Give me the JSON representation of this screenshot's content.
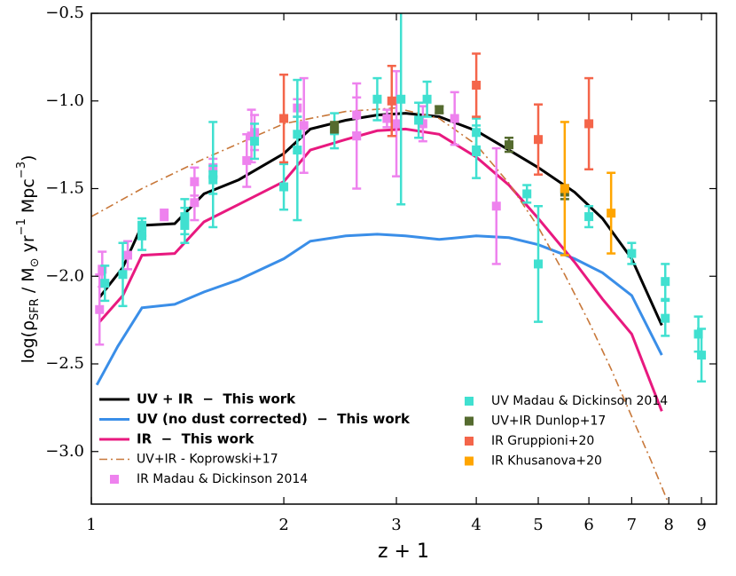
{
  "chart_data": {
    "type": "line",
    "x_label": "z + 1",
    "y_label_parts": [
      "log(ρ",
      "SFR",
      " / M",
      "⊙",
      " yr",
      "−1",
      " Mpc",
      "−3",
      ")"
    ],
    "x_log": true,
    "xlim": [
      1,
      9.5
    ],
    "xticks": [
      1,
      2,
      3,
      4,
      5,
      6,
      7,
      8,
      9
    ],
    "ylim": [
      -3.3,
      -0.5
    ],
    "yticks": [
      {
        "value": -3.0,
        "label": "−3.0"
      },
      {
        "value": -2.5,
        "label": "−2.5"
      },
      {
        "value": -2.0,
        "label": "−2.0"
      },
      {
        "value": -1.5,
        "label": "−1.5"
      },
      {
        "value": -1.0,
        "label": "−1.0"
      },
      {
        "value": -0.5,
        "label": "−0.5"
      }
    ],
    "series": [
      {
        "name": "UV + IR  −  This work",
        "kind": "line",
        "style": "solid",
        "bold": true,
        "color": "#000000",
        "x": [
          1.03,
          1.12,
          1.2,
          1.35,
          1.5,
          1.7,
          2.0,
          2.2,
          2.5,
          2.8,
          3.1,
          3.5,
          4.0,
          4.5,
          5.0,
          5.7,
          6.3,
          7.0,
          7.8
        ],
        "values": [
          -2.12,
          -1.95,
          -1.71,
          -1.7,
          -1.53,
          -1.45,
          -1.3,
          -1.16,
          -1.11,
          -1.08,
          -1.07,
          -1.09,
          -1.17,
          -1.28,
          -1.38,
          -1.52,
          -1.67,
          -1.9,
          -2.28
        ]
      },
      {
        "name": "UV (no dust corrected)  −  This work",
        "kind": "line",
        "style": "solid",
        "bold": true,
        "color": "#3a8ee8",
        "x": [
          1.02,
          1.1,
          1.2,
          1.35,
          1.5,
          1.7,
          2.0,
          2.2,
          2.5,
          2.8,
          3.1,
          3.5,
          4.0,
          4.5,
          5.0,
          5.7,
          6.3,
          7.0,
          7.8
        ],
        "values": [
          -2.62,
          -2.4,
          -2.18,
          -2.16,
          -2.09,
          -2.02,
          -1.9,
          -1.8,
          -1.77,
          -1.76,
          -1.77,
          -1.79,
          -1.77,
          -1.78,
          -1.82,
          -1.9,
          -1.98,
          -2.11,
          -2.45
        ]
      },
      {
        "name": "IR  −  This work",
        "kind": "line",
        "style": "solid",
        "bold": true,
        "color": "#e8197f",
        "x": [
          1.03,
          1.12,
          1.2,
          1.35,
          1.5,
          1.7,
          2.0,
          2.2,
          2.5,
          2.8,
          3.1,
          3.5,
          4.0,
          4.5,
          5.0,
          5.7,
          6.3,
          7.0,
          7.8
        ],
        "values": [
          -2.26,
          -2.11,
          -1.88,
          -1.87,
          -1.69,
          -1.59,
          -1.46,
          -1.28,
          -1.22,
          -1.17,
          -1.16,
          -1.19,
          -1.32,
          -1.48,
          -1.67,
          -1.92,
          -2.13,
          -2.33,
          -2.77
        ]
      },
      {
        "name": "UV+IR - Koprowski+17",
        "kind": "line",
        "style": "dashdot",
        "bold": false,
        "color": "#c8783a",
        "x": [
          1.0,
          1.2,
          1.5,
          2.0,
          2.5,
          3.0,
          3.5,
          4.0,
          4.5,
          5.0,
          5.5,
          6.0,
          6.5,
          7.0,
          7.5,
          8.0
        ],
        "values": [
          -1.66,
          -1.5,
          -1.33,
          -1.13,
          -1.06,
          -1.04,
          -1.1,
          -1.25,
          -1.47,
          -1.72,
          -1.99,
          -2.26,
          -2.53,
          -2.8,
          -3.05,
          -3.3
        ]
      },
      {
        "name": "IR Madau & Dickinson 2014",
        "kind": "points",
        "bold": false,
        "color": "#ee82ee",
        "x": [
          1.03,
          1.04,
          1.14,
          1.3,
          1.45,
          1.45,
          1.55,
          1.75,
          1.78,
          1.8,
          2.1,
          2.15,
          2.6,
          2.6,
          2.9,
          3.0,
          3.3,
          3.7,
          4.3
        ],
        "values": [
          -2.19,
          -1.96,
          -1.88,
          -1.65,
          -1.58,
          -1.46,
          -1.38,
          -1.34,
          -1.2,
          -1.18,
          -1.04,
          -1.14,
          -1.08,
          -1.2,
          -1.1,
          -1.13,
          -1.13,
          -1.1,
          -1.6
        ],
        "errors": [
          0.2,
          0.1,
          0.08,
          0.03,
          0.1,
          0.08,
          0.05,
          0.15,
          0.15,
          0.1,
          0.05,
          0.27,
          0.1,
          0.3,
          0.05,
          0.3,
          0.1,
          0.15,
          0.33
        ]
      },
      {
        "name": "UV Madau & Dickinson 2014",
        "kind": "points",
        "bold": false,
        "color": "#40e0d0",
        "x": [
          1.05,
          1.12,
          1.2,
          1.2,
          1.4,
          1.4,
          1.55,
          1.55,
          1.8,
          2.0,
          2.1,
          2.1,
          2.4,
          2.8,
          3.05,
          3.25,
          3.35,
          4.0,
          4.0,
          4.8,
          5.0,
          6.0,
          7.0,
          7.9,
          7.9,
          8.9,
          9.0
        ],
        "values": [
          -2.04,
          -1.99,
          -1.77,
          -1.72,
          -1.66,
          -1.71,
          -1.45,
          -1.42,
          -1.23,
          -1.49,
          -1.19,
          -1.28,
          -1.17,
          -0.99,
          -0.99,
          -1.11,
          -0.99,
          -1.29,
          -1.18,
          -1.53,
          -1.93,
          -1.66,
          -1.87,
          -2.03,
          -2.24,
          -2.33,
          -2.45
        ],
        "errors": [
          0.1,
          0.18,
          0.08,
          0.05,
          0.1,
          0.1,
          0.08,
          0.3,
          0.1,
          0.13,
          0.1,
          0.4,
          0.1,
          0.12,
          0.6,
          0.1,
          0.1,
          0.15,
          0.08,
          0.05,
          0.33,
          0.06,
          0.06,
          0.1,
          0.1,
          0.1,
          0.15
        ]
      },
      {
        "name": "UV+IR Dunlop+17",
        "kind": "points",
        "bold": false,
        "color": "#556b2f",
        "x": [
          2.4,
          3.5,
          4.5,
          5.5
        ],
        "values": [
          -1.15,
          -1.05,
          -1.25,
          -1.52
        ],
        "errors": [
          0.03,
          0.02,
          0.04,
          0.04
        ]
      },
      {
        "name": "IR Gruppioni+20",
        "kind": "points",
        "bold": false,
        "color": "#f4654a",
        "x": [
          2.0,
          2.95,
          4.0,
          5.0,
          6.0
        ],
        "values": [
          -1.1,
          -1.0,
          -0.91,
          -1.22,
          -1.13
        ],
        "errors": [
          0.25,
          0.2,
          0.18,
          0.2,
          0.26
        ]
      },
      {
        "name": "IR Khusanova+20",
        "kind": "points",
        "bold": false,
        "color": "#ffa500",
        "x": [
          5.5,
          6.5
        ],
        "values": [
          -1.5,
          -1.64
        ],
        "errors": [
          0.38,
          0.23
        ]
      }
    ]
  }
}
